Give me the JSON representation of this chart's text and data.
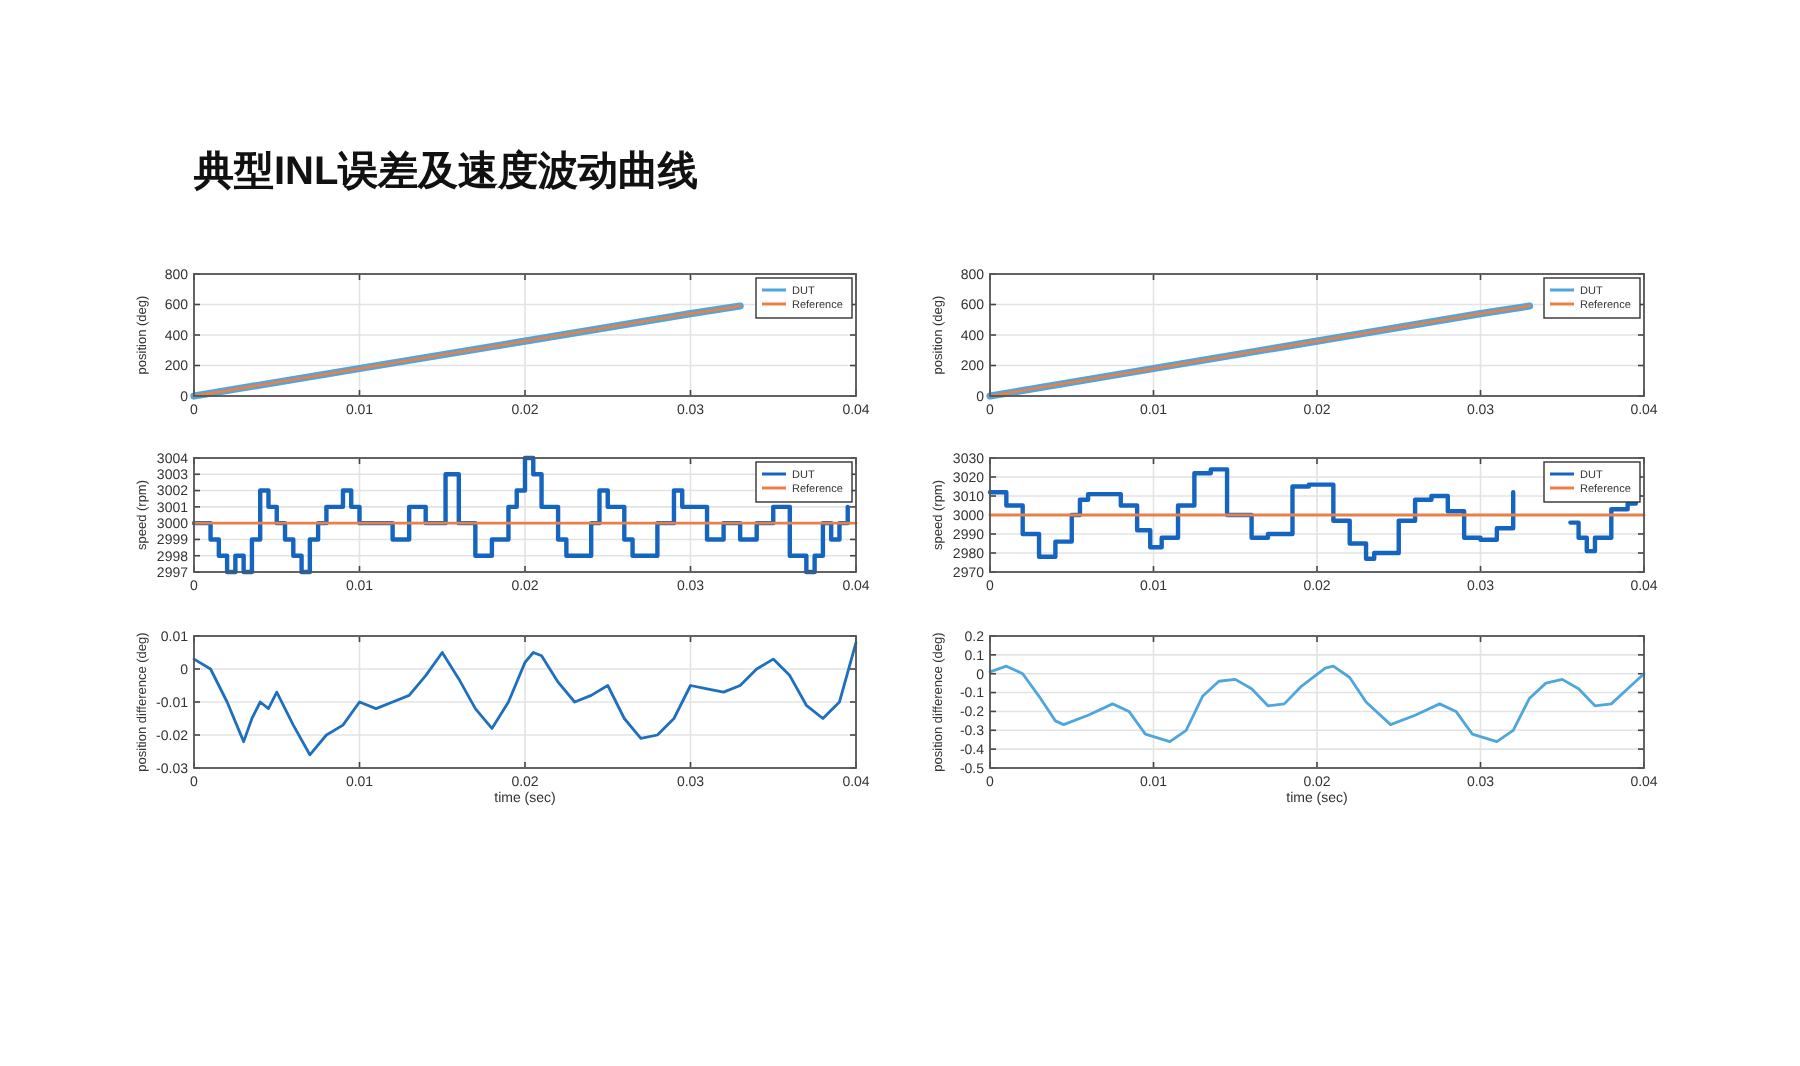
{
  "chart_data": [
    {
      "type": "line",
      "title": "典型INL误差及速度波动曲线",
      "ylabel": "position (deg)",
      "xlim": [
        0,
        0.04
      ],
      "ylim": [
        0,
        800
      ],
      "xticks": [
        0,
        0.01,
        0.02,
        0.03,
        0.04
      ],
      "yticks": [
        0,
        200,
        400,
        600,
        800
      ],
      "grid": true,
      "legend": "top right",
      "series": [
        {
          "name": "DUT",
          "color": "#4ea6dc",
          "x": [
            0,
            0.01,
            0.02,
            0.03,
            0.033
          ],
          "values": [
            0,
            180,
            360,
            540,
            590
          ]
        },
        {
          "name": "Reference",
          "color": "#e8804a",
          "x": [
            0,
            0.01,
            0.02,
            0.03,
            0.033
          ],
          "values": [
            0,
            180,
            360,
            540,
            590
          ]
        }
      ]
    },
    {
      "type": "line",
      "ylabel": "position (deg)",
      "xlim": [
        0,
        0.04
      ],
      "ylim": [
        0,
        800
      ],
      "xticks": [
        0,
        0.01,
        0.02,
        0.03,
        0.04
      ],
      "yticks": [
        0,
        200,
        400,
        600,
        800
      ],
      "grid": true,
      "legend": "top right",
      "series": [
        {
          "name": "DUT",
          "color": "#4ea6dc",
          "x": [
            0,
            0.01,
            0.02,
            0.03,
            0.033
          ],
          "values": [
            0,
            180,
            360,
            540,
            590
          ]
        },
        {
          "name": "Reference",
          "color": "#e8804a",
          "x": [
            0,
            0.01,
            0.02,
            0.03,
            0.033
          ],
          "values": [
            0,
            180,
            360,
            540,
            590
          ]
        }
      ]
    },
    {
      "type": "line",
      "ylabel": "speed (rpm)",
      "xlim": [
        0,
        0.04
      ],
      "ylim": [
        2997,
        3004
      ],
      "xticks": [
        0,
        0.01,
        0.02,
        0.03,
        0.04
      ],
      "yticks": [
        2997,
        2998,
        2999,
        3000,
        3001,
        3002,
        3003,
        3004
      ],
      "grid": true,
      "legend": "top right",
      "series": [
        {
          "name": "DUT",
          "type": "step",
          "color": "#1565c0",
          "x": [
            0,
            0.001,
            0.0015,
            0.002,
            0.0025,
            0.003,
            0.0035,
            0.004,
            0.0045,
            0.005,
            0.0055,
            0.006,
            0.0065,
            0.007,
            0.0075,
            0.008,
            0.009,
            0.0095,
            0.01,
            0.011,
            0.012,
            0.013,
            0.014,
            0.0152,
            0.016,
            0.017,
            0.018,
            0.019,
            0.0195,
            0.02,
            0.0205,
            0.021,
            0.022,
            0.0225,
            0.023,
            0.024,
            0.0245,
            0.025,
            0.026,
            0.0265,
            0.027,
            0.028,
            0.029,
            0.0295,
            0.03,
            0.031,
            0.032,
            0.033,
            0.034,
            0.035,
            0.036,
            0.037,
            0.0375,
            0.038,
            0.0385,
            0.039,
            0.0395
          ],
          "values": [
            3000,
            2999,
            2998,
            2997,
            2998,
            2997,
            2999,
            3002,
            3001,
            3000,
            2999,
            2998,
            2997,
            2999,
            3000,
            3001,
            3002,
            3001,
            3000,
            3000,
            2999,
            3001,
            3000,
            3003,
            3000,
            2998,
            2999,
            3001,
            3002,
            3004,
            3003,
            3001,
            2999,
            2998,
            2998,
            3000,
            3002,
            3001,
            2999,
            2998,
            2998,
            3000,
            3002,
            3001,
            3001,
            2999,
            3000,
            2999,
            3000,
            3001,
            2998,
            2997,
            2998,
            3000,
            2999,
            3000,
            3001
          ]
        },
        {
          "name": "Reference",
          "color": "#e8804a",
          "x": [
            0,
            0.04
          ],
          "values": [
            3000,
            3000
          ]
        }
      ]
    },
    {
      "type": "line",
      "ylabel": "speed (rpm)",
      "xlim": [
        0,
        0.04
      ],
      "ylim": [
        2970,
        3030
      ],
      "xticks": [
        0,
        0.01,
        0.02,
        0.03,
        0.04
      ],
      "yticks": [
        2970,
        2980,
        2990,
        3000,
        3010,
        3020,
        3030
      ],
      "grid": true,
      "legend": "top right",
      "series": [
        {
          "name": "DUT",
          "type": "step",
          "color": "#1565c0",
          "x": [
            0,
            0.001,
            0.002,
            0.003,
            0.0035,
            0.004,
            0.005,
            0.0055,
            0.006,
            0.007,
            0.008,
            0.009,
            0.0098,
            0.0105,
            0.0115,
            0.0125,
            0.0135,
            0.0145,
            0.016,
            0.017,
            0.0185,
            0.0195,
            0.021,
            0.022,
            0.023,
            0.0235,
            0.025,
            0.026,
            0.027,
            0.028,
            0.029,
            0.03,
            0.031,
            0.032,
            0.033,
            0.0355,
            0.036,
            0.0365,
            0.037,
            0.038,
            0.039,
            0.0395
          ],
          "values": [
            3012,
            3005,
            2990,
            2978,
            2978,
            2986,
            3000,
            3008,
            3011,
            3011,
            3005,
            2992,
            2983,
            2988,
            3005,
            3022,
            3024,
            3000,
            2988,
            2990,
            3015,
            3016,
            2997,
            2985,
            2977,
            2980,
            2997,
            3008,
            3010,
            3002,
            2988,
            2987,
            2993,
            3012,
            null,
            2996,
            2988,
            2981,
            2988,
            3003,
            3006,
            3008
          ]
        },
        {
          "name": "Reference",
          "color": "#e8804a",
          "x": [
            0,
            0.04
          ],
          "values": [
            3000,
            3000
          ]
        }
      ]
    },
    {
      "type": "line",
      "ylabel": "position difference (deg)",
      "xlabel": "time (sec)",
      "xlim": [
        0,
        0.04
      ],
      "ylim": [
        -0.03,
        0.01
      ],
      "xticks": [
        0,
        0.01,
        0.02,
        0.03,
        0.04
      ],
      "yticks": [
        -0.03,
        -0.02,
        -0.01,
        0,
        0.01
      ],
      "grid": true,
      "series": [
        {
          "color": "#1f6fbf",
          "x": [
            0,
            0.001,
            0.002,
            0.003,
            0.0035,
            0.004,
            0.0045,
            0.005,
            0.006,
            0.007,
            0.008,
            0.009,
            0.01,
            0.011,
            0.012,
            0.013,
            0.014,
            0.015,
            0.016,
            0.017,
            0.018,
            0.019,
            0.02,
            0.0205,
            0.021,
            0.022,
            0.023,
            0.024,
            0.025,
            0.026,
            0.027,
            0.028,
            0.029,
            0.03,
            0.031,
            0.032,
            0.033,
            0.034,
            0.035,
            0.036,
            0.037,
            0.038,
            0.039,
            0.04
          ],
          "values": [
            0.003,
            0,
            -0.01,
            -0.022,
            -0.015,
            -0.01,
            -0.012,
            -0.007,
            -0.017,
            -0.026,
            -0.02,
            -0.017,
            -0.01,
            -0.012,
            -0.01,
            -0.008,
            -0.002,
            0.005,
            -0.003,
            -0.012,
            -0.018,
            -0.01,
            0.002,
            0.005,
            0.004,
            -0.004,
            -0.01,
            -0.008,
            -0.005,
            -0.015,
            -0.021,
            -0.02,
            -0.015,
            -0.005,
            -0.006,
            -0.007,
            -0.005,
            0,
            0.003,
            -0.002,
            -0.011,
            -0.015,
            -0.01,
            0.008
          ]
        }
      ]
    },
    {
      "type": "line",
      "ylabel": "position difference (deg)",
      "xlabel": "time (sec)",
      "xlim": [
        0,
        0.04
      ],
      "ylim": [
        -0.5,
        0.2
      ],
      "xticks": [
        0,
        0.01,
        0.02,
        0.03,
        0.04
      ],
      "yticks": [
        -0.5,
        -0.4,
        -0.3,
        -0.2,
        -0.1,
        0,
        0.1,
        0.2
      ],
      "grid": true,
      "series": [
        {
          "color": "#4ea6dc",
          "x": [
            0,
            0.001,
            0.002,
            0.003,
            0.004,
            0.0045,
            0.006,
            0.0075,
            0.0085,
            0.0095,
            0.011,
            0.012,
            0.013,
            0.014,
            0.015,
            0.016,
            0.017,
            0.018,
            0.019,
            0.0205,
            0.021,
            0.022,
            0.023,
            0.0245,
            0.026,
            0.0275,
            0.0285,
            0.0295,
            0.031,
            0.032,
            0.033,
            0.034,
            0.035,
            0.036,
            0.037,
            0.038,
            0.039,
            0.04
          ],
          "values": [
            0.01,
            0.04,
            0,
            -0.12,
            -0.25,
            -0.27,
            -0.22,
            -0.16,
            -0.2,
            -0.32,
            -0.36,
            -0.3,
            -0.12,
            -0.04,
            -0.03,
            -0.08,
            -0.17,
            -0.16,
            -0.07,
            0.03,
            0.04,
            -0.02,
            -0.15,
            -0.27,
            -0.22,
            -0.16,
            -0.2,
            -0.32,
            -0.36,
            -0.3,
            -0.13,
            -0.05,
            -0.03,
            -0.08,
            -0.17,
            -0.16,
            -0.08,
            0
          ]
        }
      ]
    }
  ]
}
